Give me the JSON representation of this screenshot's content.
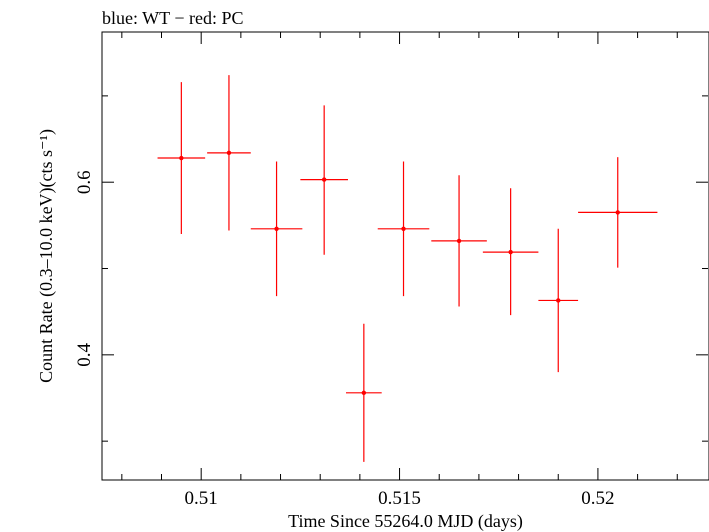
{
  "caption": "blue: WT − red: PC",
  "chart_data": {
    "type": "scatter",
    "title": "",
    "xlabel": "Time Since 55264.0 MJD (days)",
    "ylabel": "Count Rate (0.3–10.0 keV)(cts s⁻¹)",
    "xlim": [
      0.5075,
      0.5228
    ],
    "ylim": [
      0.255,
      0.774
    ],
    "x_ticks": [
      0.51,
      0.515,
      0.52
    ],
    "x_tick_labels": [
      "0.51",
      "0.515",
      "0.52"
    ],
    "x_minor_ticks": [
      0.508,
      0.509,
      0.511,
      0.512,
      0.513,
      0.514,
      0.516,
      0.517,
      0.518,
      0.519,
      0.521,
      0.522
    ],
    "y_ticks": [
      0.4,
      0.6
    ],
    "y_tick_labels": [
      "0.4",
      "0.6"
    ],
    "y_minor_ticks": [
      0.3,
      0.5,
      0.7
    ],
    "grid": false,
    "series": [
      {
        "name": "PC",
        "color": "#ff0000",
        "points": [
          {
            "x": 0.5095,
            "y": 0.628,
            "xerr_lo": 0.0006,
            "xerr_hi": 0.0006,
            "ylo": 0.54,
            "yhi": 0.716
          },
          {
            "x": 0.5107,
            "y": 0.634,
            "xerr_lo": 0.00055,
            "xerr_hi": 0.00055,
            "ylo": 0.544,
            "yhi": 0.724
          },
          {
            "x": 0.5119,
            "y": 0.546,
            "xerr_lo": 0.00065,
            "xerr_hi": 0.00065,
            "ylo": 0.468,
            "yhi": 0.624
          },
          {
            "x": 0.5131,
            "y": 0.603,
            "xerr_lo": 0.0006,
            "xerr_hi": 0.0006,
            "ylo": 0.516,
            "yhi": 0.689
          },
          {
            "x": 0.5141,
            "y": 0.356,
            "xerr_lo": 0.00045,
            "xerr_hi": 0.00045,
            "ylo": 0.276,
            "yhi": 0.436
          },
          {
            "x": 0.5151,
            "y": 0.546,
            "xerr_lo": 0.00065,
            "xerr_hi": 0.00065,
            "ylo": 0.468,
            "yhi": 0.624
          },
          {
            "x": 0.5165,
            "y": 0.532,
            "xerr_lo": 0.0007,
            "xerr_hi": 0.0007,
            "ylo": 0.456,
            "yhi": 0.608
          },
          {
            "x": 0.5178,
            "y": 0.519,
            "xerr_lo": 0.0007,
            "xerr_hi": 0.0007,
            "ylo": 0.446,
            "yhi": 0.593
          },
          {
            "x": 0.519,
            "y": 0.463,
            "xerr_lo": 0.0005,
            "xerr_hi": 0.0005,
            "ylo": 0.38,
            "yhi": 0.546
          },
          {
            "x": 0.5205,
            "y": 0.565,
            "xerr_lo": 0.001,
            "xerr_hi": 0.001,
            "ylo": 0.501,
            "yhi": 0.629
          }
        ]
      }
    ]
  }
}
